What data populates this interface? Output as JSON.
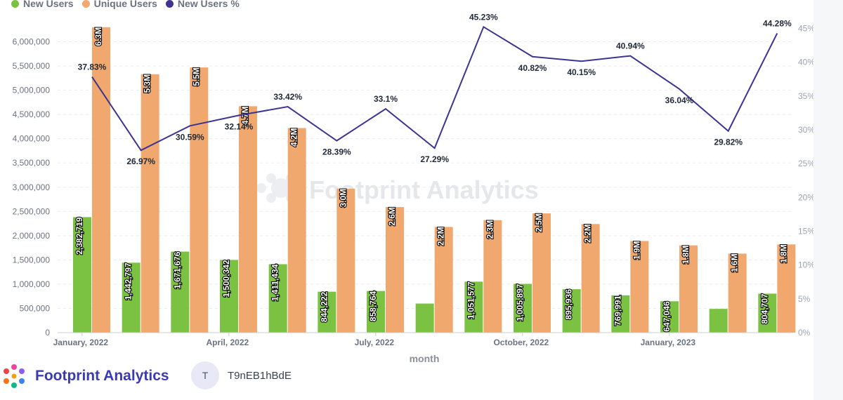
{
  "legend": [
    {
      "label": "New Users",
      "color": "#7cc242"
    },
    {
      "label": "Unique Users",
      "color": "#f0a86e"
    },
    {
      "label": "New Users %",
      "color": "#3b3591"
    }
  ],
  "watermark": "Footprint Analytics",
  "footer": {
    "brand": "Footprint Analytics",
    "avatar_initial": "T",
    "user_name": "T9nEB1hBdE"
  },
  "chart_data": {
    "type": "bar+line",
    "xlabel": "month",
    "x_tick_labels": [
      {
        "index": 0,
        "label": "January, 2022"
      },
      {
        "index": 3,
        "label": "April, 2022"
      },
      {
        "index": 6,
        "label": "July, 2022"
      },
      {
        "index": 9,
        "label": "October, 2022"
      },
      {
        "index": 12,
        "label": "January, 2023"
      }
    ],
    "y_left": {
      "min": 0,
      "max": 6000000,
      "ticks": [
        0,
        500000,
        1000000,
        1500000,
        2000000,
        2500000,
        3000000,
        3500000,
        4000000,
        4500000,
        5000000,
        5500000,
        6000000
      ],
      "tick_labels": [
        "0",
        "500,000",
        "1,000,000",
        "1,500,000",
        "2,000,000",
        "2,500,000",
        "3,000,000",
        "3,500,000",
        "4,000,000",
        "4,500,000",
        "5,000,000",
        "5,500,000",
        "6,000,000"
      ]
    },
    "y_right": {
      "min": 0,
      "max": 45,
      "ticks": [
        0,
        5,
        10,
        15,
        20,
        25,
        30,
        35,
        40,
        45
      ],
      "tick_labels": [
        "0%",
        "5%",
        "10%",
        "15%",
        "20%",
        "25%",
        "30%",
        "35%",
        "40%",
        "45%"
      ]
    },
    "grid": true,
    "legend_position": "top-left",
    "series": [
      {
        "name": "New Users",
        "kind": "bar",
        "color": "#7cc242",
        "values": [
          2382719,
          1442797,
          1671676,
          1500342,
          1411434,
          844222,
          858764,
          600000,
          1051577,
          1005897,
          895936,
          769991,
          647046,
          490000,
          804707
        ],
        "labels": [
          "2,382,719",
          "1,442,797",
          "1,671,676",
          "1,500,342",
          "1,411,434",
          "844,222",
          "858,764",
          "",
          "1,051,577",
          "1,005,897",
          "895,936",
          "769,991",
          "647,046",
          "",
          "804,707"
        ]
      },
      {
        "name": "Unique Users",
        "kind": "bar",
        "color": "#f0a86e",
        "values": [
          6300000,
          5330000,
          5470000,
          4670000,
          4220000,
          2970000,
          2590000,
          2180000,
          2320000,
          2460000,
          2240000,
          1890000,
          1800000,
          1630000,
          1820000
        ],
        "labels": [
          "6.3M",
          "5.3M",
          "5.5M",
          "4.7M",
          "4.2M",
          "3.0M",
          "2.6M",
          "2.2M",
          "2.3M",
          "2.5M",
          "2.2M",
          "1.9M",
          "1.8M",
          "1.6M",
          "1.8M"
        ]
      },
      {
        "name": "New Users %",
        "kind": "line",
        "color": "#3b3591",
        "values": [
          37.83,
          26.97,
          30.59,
          32.14,
          33.42,
          28.39,
          33.1,
          27.29,
          45.23,
          40.82,
          40.15,
          40.94,
          36.04,
          29.82,
          44.28
        ],
        "labels": [
          "37.83%",
          "26.97%",
          "30.59%",
          "32.14%",
          "33.42%",
          "28.39%",
          "33.1%",
          "27.29%",
          "45.23%",
          "40.82%",
          "40.15%",
          "40.94%",
          "36.04%",
          "29.82%",
          "44.28%"
        ]
      }
    ]
  }
}
